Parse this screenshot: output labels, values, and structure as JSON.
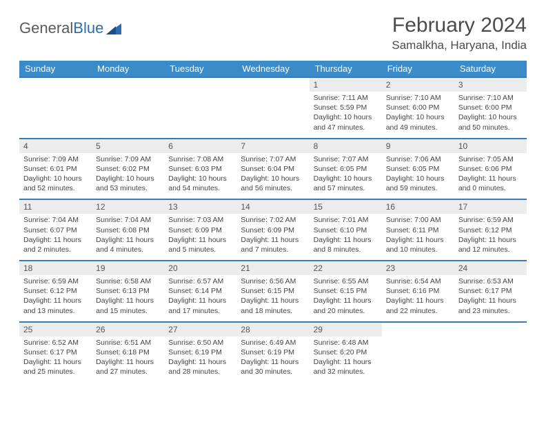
{
  "logo": {
    "word1": "General",
    "word2": "Blue"
  },
  "title": "February 2024",
  "location": "Samalkha, Haryana, India",
  "colors": {
    "header_bg": "#3b8bc8",
    "row_divider": "#3b78b5",
    "daynum_bg": "#ececec",
    "text": "#444444",
    "logo_blue": "#2a6cb0"
  },
  "weekdays": [
    "Sunday",
    "Monday",
    "Tuesday",
    "Wednesday",
    "Thursday",
    "Friday",
    "Saturday"
  ],
  "weeks": [
    [
      null,
      null,
      null,
      null,
      {
        "n": "1",
        "sr": "7:11 AM",
        "ss": "5:59 PM",
        "dl": "10 hours and 47 minutes."
      },
      {
        "n": "2",
        "sr": "7:10 AM",
        "ss": "6:00 PM",
        "dl": "10 hours and 49 minutes."
      },
      {
        "n": "3",
        "sr": "7:10 AM",
        "ss": "6:00 PM",
        "dl": "10 hours and 50 minutes."
      }
    ],
    [
      {
        "n": "4",
        "sr": "7:09 AM",
        "ss": "6:01 PM",
        "dl": "10 hours and 52 minutes."
      },
      {
        "n": "5",
        "sr": "7:09 AM",
        "ss": "6:02 PM",
        "dl": "10 hours and 53 minutes."
      },
      {
        "n": "6",
        "sr": "7:08 AM",
        "ss": "6:03 PM",
        "dl": "10 hours and 54 minutes."
      },
      {
        "n": "7",
        "sr": "7:07 AM",
        "ss": "6:04 PM",
        "dl": "10 hours and 56 minutes."
      },
      {
        "n": "8",
        "sr": "7:07 AM",
        "ss": "6:05 PM",
        "dl": "10 hours and 57 minutes."
      },
      {
        "n": "9",
        "sr": "7:06 AM",
        "ss": "6:05 PM",
        "dl": "10 hours and 59 minutes."
      },
      {
        "n": "10",
        "sr": "7:05 AM",
        "ss": "6:06 PM",
        "dl": "11 hours and 0 minutes."
      }
    ],
    [
      {
        "n": "11",
        "sr": "7:04 AM",
        "ss": "6:07 PM",
        "dl": "11 hours and 2 minutes."
      },
      {
        "n": "12",
        "sr": "7:04 AM",
        "ss": "6:08 PM",
        "dl": "11 hours and 4 minutes."
      },
      {
        "n": "13",
        "sr": "7:03 AM",
        "ss": "6:09 PM",
        "dl": "11 hours and 5 minutes."
      },
      {
        "n": "14",
        "sr": "7:02 AM",
        "ss": "6:09 PM",
        "dl": "11 hours and 7 minutes."
      },
      {
        "n": "15",
        "sr": "7:01 AM",
        "ss": "6:10 PM",
        "dl": "11 hours and 8 minutes."
      },
      {
        "n": "16",
        "sr": "7:00 AM",
        "ss": "6:11 PM",
        "dl": "11 hours and 10 minutes."
      },
      {
        "n": "17",
        "sr": "6:59 AM",
        "ss": "6:12 PM",
        "dl": "11 hours and 12 minutes."
      }
    ],
    [
      {
        "n": "18",
        "sr": "6:59 AM",
        "ss": "6:12 PM",
        "dl": "11 hours and 13 minutes."
      },
      {
        "n": "19",
        "sr": "6:58 AM",
        "ss": "6:13 PM",
        "dl": "11 hours and 15 minutes."
      },
      {
        "n": "20",
        "sr": "6:57 AM",
        "ss": "6:14 PM",
        "dl": "11 hours and 17 minutes."
      },
      {
        "n": "21",
        "sr": "6:56 AM",
        "ss": "6:15 PM",
        "dl": "11 hours and 18 minutes."
      },
      {
        "n": "22",
        "sr": "6:55 AM",
        "ss": "6:15 PM",
        "dl": "11 hours and 20 minutes."
      },
      {
        "n": "23",
        "sr": "6:54 AM",
        "ss": "6:16 PM",
        "dl": "11 hours and 22 minutes."
      },
      {
        "n": "24",
        "sr": "6:53 AM",
        "ss": "6:17 PM",
        "dl": "11 hours and 23 minutes."
      }
    ],
    [
      {
        "n": "25",
        "sr": "6:52 AM",
        "ss": "6:17 PM",
        "dl": "11 hours and 25 minutes."
      },
      {
        "n": "26",
        "sr": "6:51 AM",
        "ss": "6:18 PM",
        "dl": "11 hours and 27 minutes."
      },
      {
        "n": "27",
        "sr": "6:50 AM",
        "ss": "6:19 PM",
        "dl": "11 hours and 28 minutes."
      },
      {
        "n": "28",
        "sr": "6:49 AM",
        "ss": "6:19 PM",
        "dl": "11 hours and 30 minutes."
      },
      {
        "n": "29",
        "sr": "6:48 AM",
        "ss": "6:20 PM",
        "dl": "11 hours and 32 minutes."
      },
      null,
      null
    ]
  ],
  "labels": {
    "sunrise": "Sunrise: ",
    "sunset": "Sunset: ",
    "daylight": "Daylight: "
  }
}
